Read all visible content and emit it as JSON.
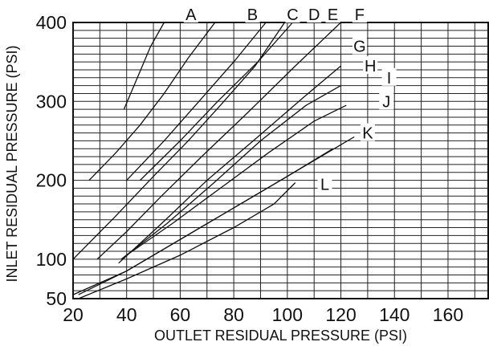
{
  "chart_data": {
    "type": "line",
    "xlabel": "OUTLET RESIDUAL PRESSURE (PSI)",
    "ylabel": "INLET RESIDUAL PRESSURE (PSI)",
    "xlim": [
      20,
      175
    ],
    "ylim": [
      50,
      400
    ],
    "x_ticks": [
      20,
      40,
      60,
      80,
      100,
      120,
      140,
      160
    ],
    "y_ticks": [
      50,
      100,
      200,
      300,
      400
    ],
    "grid": true,
    "series": [
      {
        "name": "A",
        "points": [
          [
            39,
            290
          ],
          [
            44,
            330
          ],
          [
            49,
            370
          ],
          [
            54,
            400
          ]
        ]
      },
      {
        "name": "B",
        "points": [
          [
            26,
            200
          ],
          [
            36,
            235
          ],
          [
            45,
            270
          ],
          [
            54,
            310
          ],
          [
            63,
            355
          ],
          [
            73,
            400
          ]
        ]
      },
      {
        "name": "C",
        "points": [
          [
            40,
            200
          ],
          [
            54,
            250
          ],
          [
            67,
            300
          ],
          [
            80,
            350
          ],
          [
            92,
            400
          ]
        ]
      },
      {
        "name": "D",
        "points": [
          [
            20,
            100
          ],
          [
            36,
            155
          ],
          [
            50,
            205
          ],
          [
            63,
            250
          ],
          [
            75,
            295
          ],
          [
            88,
            345
          ],
          [
            99,
            400
          ]
        ]
      },
      {
        "name": "E",
        "points": [
          [
            45,
            200
          ],
          [
            60,
            250
          ],
          [
            74,
            300
          ],
          [
            89,
            350
          ],
          [
            102,
            400
          ]
        ]
      },
      {
        "name": "F",
        "points": [
          [
            29,
            100
          ],
          [
            40,
            135
          ],
          [
            53,
            180
          ],
          [
            68,
            230
          ],
          [
            85,
            285
          ],
          [
            103,
            345
          ],
          [
            120,
            400
          ]
        ]
      },
      {
        "name": "G",
        "points": [
          [
            37,
            95
          ],
          [
            53,
            145
          ],
          [
            70,
            200
          ],
          [
            89,
            255
          ],
          [
            106,
            305
          ],
          [
            120,
            345
          ]
        ]
      },
      {
        "name": "H",
        "points": [
          [
            38,
            100
          ],
          [
            55,
            145
          ],
          [
            72,
            195
          ],
          [
            90,
            250
          ],
          [
            107,
            295
          ],
          [
            120,
            320
          ]
        ]
      },
      {
        "name": "I",
        "points": [
          [
            40,
            105
          ],
          [
            57,
            145
          ],
          [
            75,
            190
          ],
          [
            93,
            235
          ],
          [
            110,
            275
          ],
          [
            122,
            295
          ]
        ]
      },
      {
        "name": "J",
        "points": [
          [
            22,
            55
          ],
          [
            40,
            85
          ],
          [
            60,
            125
          ],
          [
            80,
            165
          ],
          [
            100,
            205
          ],
          [
            120,
            245
          ],
          [
            125,
            255
          ]
        ]
      },
      {
        "name": "K",
        "points": [
          [
            20,
            55
          ],
          [
            40,
            85
          ],
          [
            60,
            125
          ],
          [
            80,
            165
          ],
          [
            100,
            205
          ],
          [
            117,
            240
          ]
        ]
      },
      {
        "name": "L",
        "points": [
          [
            22,
            50
          ],
          [
            40,
            75
          ],
          [
            60,
            105
          ],
          [
            80,
            140
          ],
          [
            95,
            170
          ],
          [
            103,
            197
          ]
        ]
      }
    ],
    "labels": [
      {
        "text": "A",
        "x": 64,
        "y": 410
      },
      {
        "text": "B",
        "x": 87,
        "y": 410
      },
      {
        "text": "C",
        "x": 102,
        "y": 410
      },
      {
        "text": "D",
        "x": 110,
        "y": 410
      },
      {
        "text": "E",
        "x": 117,
        "y": 410
      },
      {
        "text": "F",
        "x": 127,
        "y": 410
      },
      {
        "text": "G",
        "x": 127,
        "y": 370
      },
      {
        "text": "H",
        "x": 131,
        "y": 345
      },
      {
        "text": "I",
        "x": 138,
        "y": 330
      },
      {
        "text": "J",
        "x": 137,
        "y": 300
      },
      {
        "text": "K",
        "x": 130,
        "y": 260
      },
      {
        "text": "L",
        "x": 114,
        "y": 195
      }
    ]
  }
}
